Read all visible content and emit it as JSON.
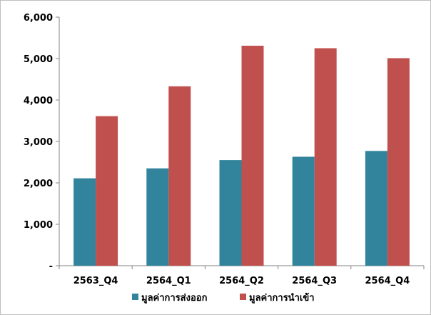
{
  "chart_data": {
    "type": "bar",
    "categories": [
      "2563_Q4",
      "2564_Q1",
      "2564_Q2",
      "2564_Q3",
      "2564_Q4"
    ],
    "series": [
      {
        "name": "มูลค่าการส่งออก",
        "color": "#31849b",
        "values": [
          2110,
          2350,
          2550,
          2630,
          2770
        ]
      },
      {
        "name": "มูลค่าการนำเข้า",
        "color": "#c0504d",
        "values": [
          3610,
          4330,
          5310,
          5250,
          5010
        ]
      }
    ],
    "y_ticks": [
      {
        "value": 0,
        "label": "-"
      },
      {
        "value": 1000,
        "label": "1,000"
      },
      {
        "value": 2000,
        "label": "2,000"
      },
      {
        "value": 3000,
        "label": "3,000"
      },
      {
        "value": 4000,
        "label": "4,000"
      },
      {
        "value": 5000,
        "label": "5,000"
      },
      {
        "value": 6000,
        "label": "6,000"
      }
    ],
    "ylim": [
      0,
      6000
    ],
    "grid": false,
    "legend_position": "bottom"
  }
}
